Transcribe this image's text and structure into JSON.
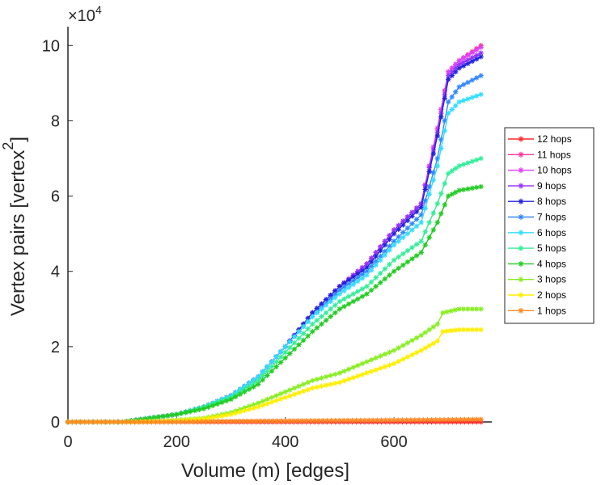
{
  "chart_data": {
    "type": "line",
    "title": "",
    "xlabel": "Volume (m) [edges]",
    "ylabel": "Vertex pairs [vertex",
    "ylabel_superscript": "2",
    "ylabel_suffix": "]",
    "y_multiplier": "×10",
    "y_exponent": "4",
    "xlim": [
      0,
      780
    ],
    "ylim": [
      0,
      10.5
    ],
    "x_ticks": [
      0,
      200,
      400,
      600
    ],
    "y_ticks": [
      0,
      2,
      4,
      6,
      8,
      10
    ],
    "x_tick_labels": [
      "0",
      "200",
      "400",
      "600"
    ],
    "y_tick_labels": [
      "0",
      "2",
      "4",
      "6",
      "8",
      "10"
    ],
    "legend_position": "right",
    "marker": "asterisk",
    "series": [
      {
        "name": "12 hops",
        "color": "#ff2a2a",
        "x": [
          0,
          100,
          200,
          300,
          400,
          500,
          600,
          700,
          760
        ],
        "y": [
          0,
          0,
          0,
          0,
          0,
          0,
          0,
          0,
          0
        ]
      },
      {
        "name": "11 hops",
        "color": "#ff3399",
        "x": [
          0,
          100,
          150,
          200,
          250,
          300,
          350,
          400,
          450,
          500,
          550,
          600,
          650,
          680,
          700,
          720,
          760
        ],
        "y": [
          0,
          0,
          0.1,
          0.2,
          0.4,
          0.7,
          1.2,
          2.0,
          2.9,
          3.6,
          4.2,
          5.1,
          5.8,
          7.8,
          9.3,
          9.6,
          10.0
        ]
      },
      {
        "name": "10 hops",
        "color": "#e040fb",
        "x": [
          0,
          100,
          150,
          200,
          250,
          300,
          350,
          400,
          450,
          500,
          550,
          600,
          650,
          680,
          700,
          720,
          760
        ],
        "y": [
          0,
          0,
          0.1,
          0.2,
          0.4,
          0.7,
          1.2,
          2.0,
          2.9,
          3.6,
          4.2,
          5.1,
          5.8,
          7.8,
          9.3,
          9.6,
          9.95
        ]
      },
      {
        "name": "9 hops",
        "color": "#9933ff",
        "x": [
          0,
          100,
          150,
          200,
          250,
          300,
          350,
          400,
          450,
          500,
          550,
          600,
          650,
          680,
          700,
          720,
          760
        ],
        "y": [
          0,
          0,
          0.1,
          0.2,
          0.4,
          0.7,
          1.2,
          2.0,
          2.9,
          3.6,
          4.2,
          5.1,
          5.8,
          7.7,
          9.2,
          9.5,
          9.8
        ]
      },
      {
        "name": "8 hops",
        "color": "#2222dd",
        "x": [
          0,
          100,
          150,
          200,
          250,
          300,
          350,
          400,
          450,
          500,
          550,
          600,
          650,
          680,
          700,
          720,
          760
        ],
        "y": [
          0,
          0,
          0.1,
          0.2,
          0.4,
          0.7,
          1.2,
          2.0,
          2.9,
          3.6,
          4.1,
          5.0,
          5.7,
          7.6,
          9.1,
          9.4,
          9.7
        ]
      },
      {
        "name": "7 hops",
        "color": "#3388ff",
        "x": [
          0,
          100,
          150,
          200,
          250,
          300,
          350,
          400,
          450,
          500,
          550,
          600,
          650,
          680,
          700,
          720,
          760
        ],
        "y": [
          0,
          0,
          0.1,
          0.2,
          0.4,
          0.7,
          1.2,
          2.0,
          2.8,
          3.5,
          4.0,
          4.8,
          5.5,
          7.0,
          8.5,
          8.9,
          9.2
        ]
      },
      {
        "name": "6 hops",
        "color": "#33ddff",
        "x": [
          0,
          100,
          150,
          200,
          250,
          300,
          350,
          400,
          450,
          500,
          550,
          600,
          650,
          680,
          700,
          720,
          760
        ],
        "y": [
          0,
          0,
          0.1,
          0.2,
          0.4,
          0.7,
          1.2,
          2.0,
          2.8,
          3.4,
          3.9,
          4.7,
          5.3,
          6.8,
          8.2,
          8.5,
          8.7
        ]
      },
      {
        "name": "5 hops",
        "color": "#33ee99",
        "x": [
          0,
          100,
          150,
          200,
          250,
          300,
          350,
          400,
          450,
          500,
          550,
          600,
          650,
          680,
          700,
          720,
          760
        ],
        "y": [
          0,
          0,
          0.1,
          0.2,
          0.4,
          0.65,
          1.1,
          1.85,
          2.6,
          3.2,
          3.6,
          4.3,
          4.8,
          5.8,
          6.6,
          6.8,
          7.0
        ]
      },
      {
        "name": "4 hops",
        "color": "#22cc22",
        "x": [
          0,
          100,
          150,
          200,
          250,
          300,
          350,
          400,
          450,
          500,
          550,
          600,
          650,
          680,
          700,
          720,
          760
        ],
        "y": [
          0,
          0,
          0.1,
          0.2,
          0.35,
          0.6,
          1.0,
          1.7,
          2.4,
          3.0,
          3.4,
          4.0,
          4.5,
          5.3,
          6.0,
          6.15,
          6.25
        ]
      },
      {
        "name": "3 hops",
        "color": "#88ee22",
        "x": [
          0,
          100,
          150,
          200,
          250,
          300,
          350,
          400,
          450,
          500,
          550,
          600,
          650,
          680,
          690,
          720,
          760
        ],
        "y": [
          0,
          0,
          0.02,
          0.05,
          0.1,
          0.25,
          0.5,
          0.8,
          1.1,
          1.3,
          1.6,
          1.9,
          2.3,
          2.6,
          2.9,
          3.0,
          3.0
        ]
      },
      {
        "name": "2 hops",
        "color": "#ffee00",
        "x": [
          0,
          100,
          150,
          200,
          250,
          300,
          350,
          400,
          450,
          500,
          550,
          600,
          650,
          680,
          690,
          720,
          760
        ],
        "y": [
          0,
          0,
          0.01,
          0.03,
          0.08,
          0.2,
          0.4,
          0.65,
          0.9,
          1.05,
          1.3,
          1.55,
          1.9,
          2.15,
          2.4,
          2.45,
          2.45
        ]
      },
      {
        "name": "1 hops",
        "color": "#ff8822",
        "x": [
          0,
          100,
          200,
          300,
          400,
          500,
          600,
          700,
          760
        ],
        "y": [
          0,
          0,
          0,
          0.02,
          0.03,
          0.04,
          0.05,
          0.06,
          0.07
        ]
      }
    ]
  }
}
